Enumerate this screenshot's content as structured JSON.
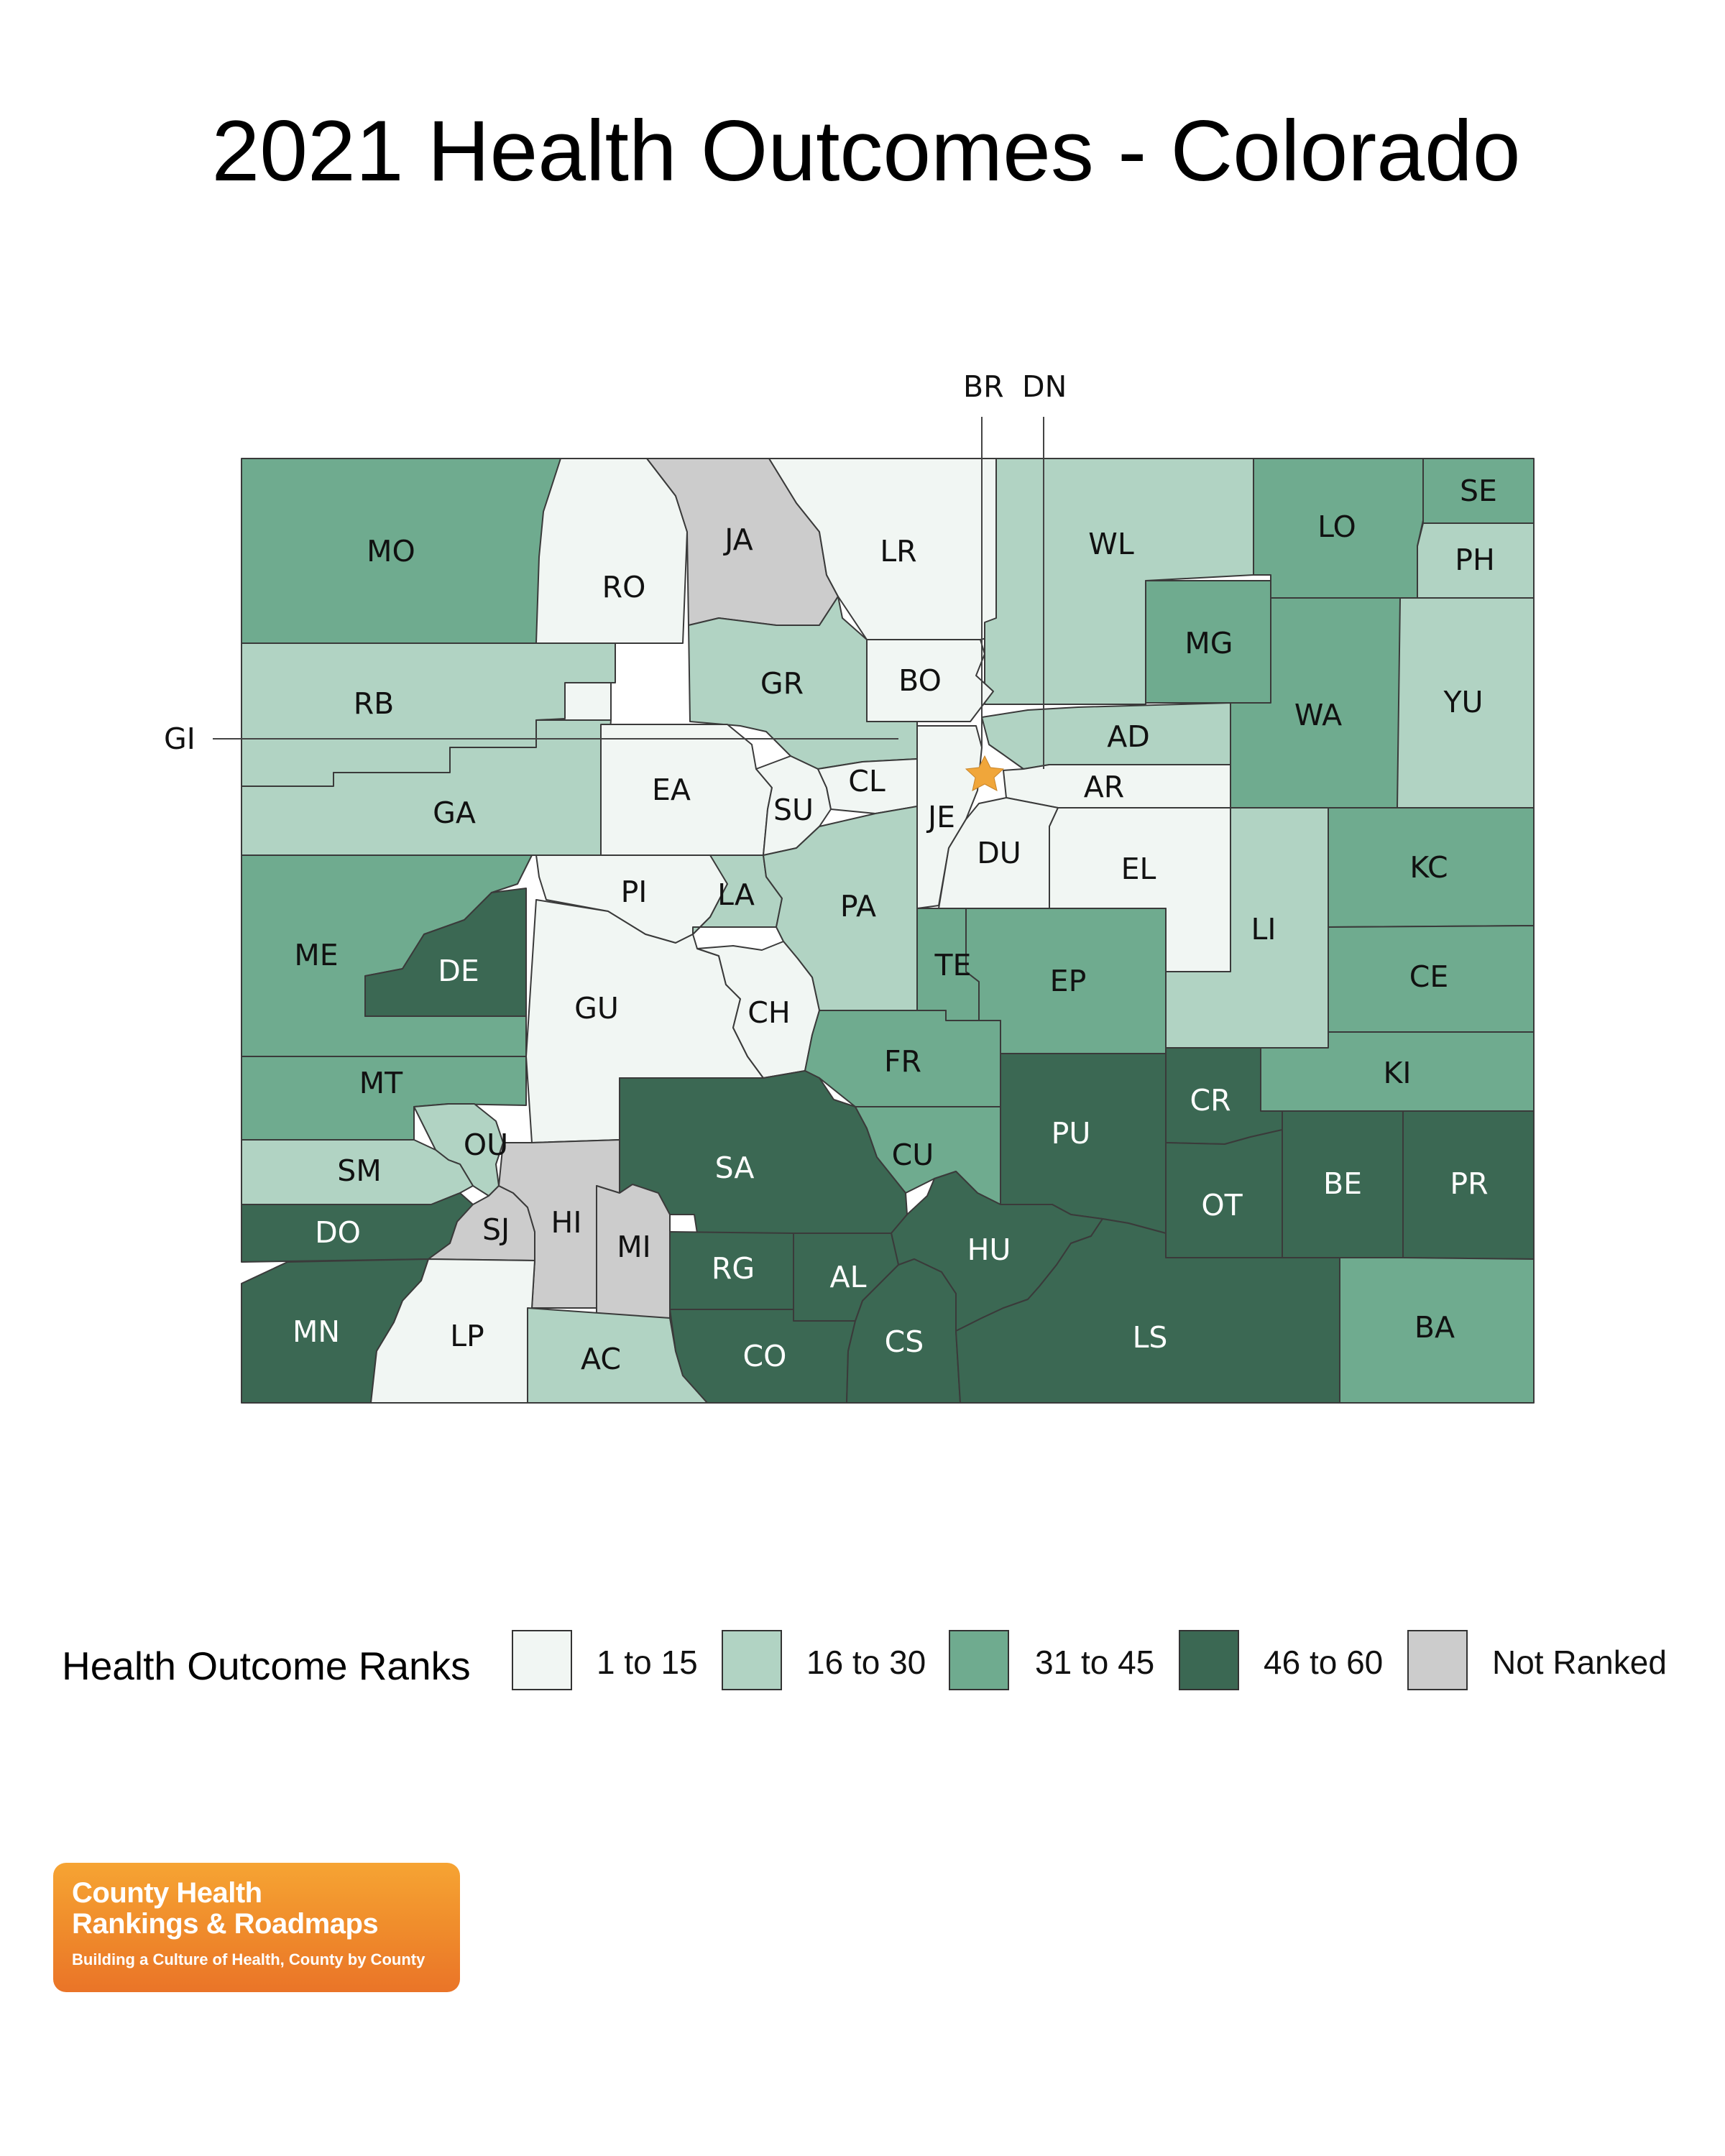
{
  "title": "2021 Health Outcomes - Colorado",
  "colors": {
    "rank_1_15": "#f1f6f3",
    "rank_16_30": "#b1d3c3",
    "rank_31_45": "#6fab8f",
    "rank_46_60": "#3b6853",
    "not_ranked": "#cccccc",
    "capital_star": "#f0a63a"
  },
  "map": {
    "callout_labels": [
      "BR",
      "DN",
      "GI"
    ],
    "capital_marker": "star-icon",
    "counties": [
      {
        "abbr": "MO",
        "rank_class": "31 to 45"
      },
      {
        "abbr": "RO",
        "rank_class": "1 to 15"
      },
      {
        "abbr": "JA",
        "rank_class": "Not Ranked"
      },
      {
        "abbr": "LR",
        "rank_class": "1 to 15"
      },
      {
        "abbr": "WL",
        "rank_class": "16 to 30"
      },
      {
        "abbr": "LO",
        "rank_class": "31 to 45"
      },
      {
        "abbr": "SE",
        "rank_class": "31 to 45"
      },
      {
        "abbr": "PH",
        "rank_class": "16 to 30"
      },
      {
        "abbr": "RB",
        "rank_class": "16 to 30"
      },
      {
        "abbr": "GR",
        "rank_class": "16 to 30"
      },
      {
        "abbr": "BO",
        "rank_class": "1 to 15"
      },
      {
        "abbr": "MG",
        "rank_class": "31 to 45"
      },
      {
        "abbr": "WA",
        "rank_class": "31 to 45"
      },
      {
        "abbr": "YU",
        "rank_class": "16 to 30"
      },
      {
        "abbr": "GA",
        "rank_class": "16 to 30"
      },
      {
        "abbr": "EA",
        "rank_class": "1 to 15"
      },
      {
        "abbr": "SU",
        "rank_class": "1 to 15"
      },
      {
        "abbr": "CL",
        "rank_class": "1 to 15"
      },
      {
        "abbr": "JE",
        "rank_class": "1 to 15"
      },
      {
        "abbr": "AD",
        "rank_class": "16 to 30"
      },
      {
        "abbr": "AR",
        "rank_class": "1 to 15"
      },
      {
        "abbr": "DU",
        "rank_class": "1 to 15"
      },
      {
        "abbr": "EL",
        "rank_class": "1 to 15"
      },
      {
        "abbr": "KC",
        "rank_class": "31 to 45"
      },
      {
        "abbr": "ME",
        "rank_class": "31 to 45"
      },
      {
        "abbr": "PI",
        "rank_class": "1 to 15"
      },
      {
        "abbr": "LA",
        "rank_class": "16 to 30"
      },
      {
        "abbr": "PA",
        "rank_class": "16 to 30"
      },
      {
        "abbr": "LI",
        "rank_class": "16 to 30"
      },
      {
        "abbr": "DE",
        "rank_class": "46 to 60"
      },
      {
        "abbr": "TE",
        "rank_class": "31 to 45"
      },
      {
        "abbr": "EP",
        "rank_class": "31 to 45"
      },
      {
        "abbr": "CE",
        "rank_class": "31 to 45"
      },
      {
        "abbr": "GU",
        "rank_class": "1 to 15"
      },
      {
        "abbr": "CH",
        "rank_class": "1 to 15"
      },
      {
        "abbr": "MT",
        "rank_class": "31 to 45"
      },
      {
        "abbr": "FR",
        "rank_class": "31 to 45"
      },
      {
        "abbr": "KI",
        "rank_class": "31 to 45"
      },
      {
        "abbr": "CR",
        "rank_class": "46 to 60"
      },
      {
        "abbr": "PU",
        "rank_class": "46 to 60"
      },
      {
        "abbr": "OU",
        "rank_class": "16 to 30"
      },
      {
        "abbr": "SA",
        "rank_class": "46 to 60"
      },
      {
        "abbr": "CU",
        "rank_class": "31 to 45"
      },
      {
        "abbr": "SM",
        "rank_class": "16 to 30"
      },
      {
        "abbr": "BE",
        "rank_class": "46 to 60"
      },
      {
        "abbr": "PR",
        "rank_class": "46 to 60"
      },
      {
        "abbr": "OT",
        "rank_class": "46 to 60"
      },
      {
        "abbr": "DO",
        "rank_class": "46 to 60"
      },
      {
        "abbr": "SJ",
        "rank_class": "Not Ranked"
      },
      {
        "abbr": "HI",
        "rank_class": "Not Ranked"
      },
      {
        "abbr": "MI",
        "rank_class": "Not Ranked"
      },
      {
        "abbr": "HU",
        "rank_class": "46 to 60"
      },
      {
        "abbr": "RG",
        "rank_class": "46 to 60"
      },
      {
        "abbr": "AL",
        "rank_class": "46 to 60"
      },
      {
        "abbr": "MN",
        "rank_class": "46 to 60"
      },
      {
        "abbr": "LP",
        "rank_class": "1 to 15"
      },
      {
        "abbr": "AC",
        "rank_class": "16 to 30"
      },
      {
        "abbr": "CO",
        "rank_class": "46 to 60"
      },
      {
        "abbr": "CS",
        "rank_class": "46 to 60"
      },
      {
        "abbr": "LS",
        "rank_class": "46 to 60"
      },
      {
        "abbr": "BA",
        "rank_class": "31 to 45"
      }
    ]
  },
  "legend": {
    "title": "Health Outcome Ranks",
    "items": [
      {
        "label": "1 to 15",
        "color": "#f1f6f3"
      },
      {
        "label": "16 to 30",
        "color": "#b1d3c3"
      },
      {
        "label": "31 to 45",
        "color": "#6fab8f"
      },
      {
        "label": "46 to 60",
        "color": "#3b6853"
      },
      {
        "label": "Not Ranked",
        "color": "#cccccc"
      }
    ]
  },
  "logo": {
    "line1": "County Health",
    "line2": "Rankings & Roadmaps",
    "tagline": "Building a Culture of Health, County by County"
  }
}
